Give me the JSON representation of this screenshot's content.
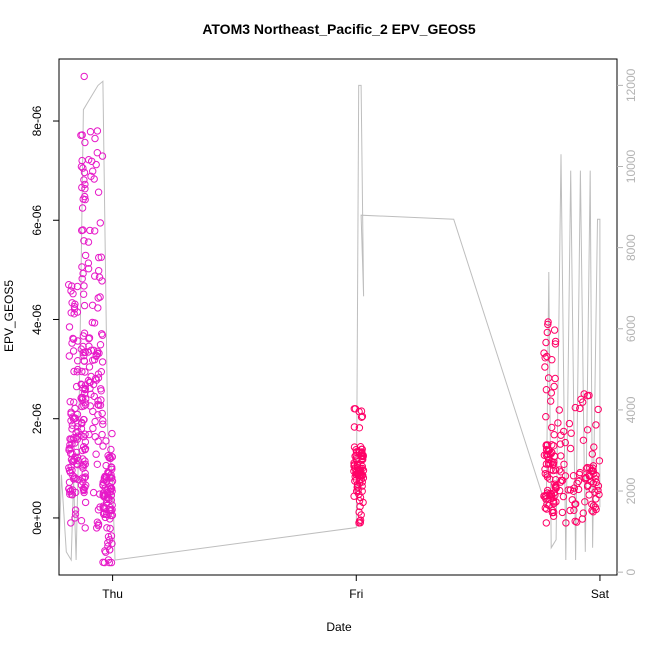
{
  "chart_data": {
    "type": "scatter",
    "title": "ATOM3 Northeast_Pacific_2 EPV_GEOS5",
    "xlabel": "Date",
    "ylabel": "EPV_GEOS5",
    "x_ticks": [
      "Thu",
      "Fri",
      "Sat"
    ],
    "ylim": [
      -1.15e-06,
      9.25e-06
    ],
    "y_ticks": [
      {
        "value": 0,
        "label": "0e+00"
      },
      {
        "value": 2e-06,
        "label": "2e-06"
      },
      {
        "value": 4e-06,
        "label": "4e-06"
      },
      {
        "value": 6e-06,
        "label": "6e-06"
      },
      {
        "value": 8e-06,
        "label": "8e-06"
      }
    ],
    "y2lim": [
      -70,
      12650
    ],
    "y2_ticks": [
      {
        "value": 0,
        "label": "0"
      },
      {
        "value": 2000,
        "label": "2000"
      },
      {
        "value": 4000,
        "label": "4000"
      },
      {
        "value": 6000,
        "label": "6000"
      },
      {
        "value": 8000,
        "label": "8000"
      },
      {
        "value": 10000,
        "label": "10000"
      },
      {
        "value": 12000,
        "label": "12000"
      }
    ],
    "x_units": "days from Thu 00:00",
    "xlim": [
      -0.22,
      2.07
    ],
    "colors": {
      "points_early": "#e619c8",
      "points_late": "#ff0066",
      "altitude_line": "#bebebe",
      "axis": "#000000",
      "axis_right": "#b3b3b3"
    },
    "series": [
      {
        "role": "points",
        "clusters": [
          {
            "x_range": [
              -0.18,
              -0.14
            ],
            "y_min": -1e-07,
            "y_max": 4.7e-06,
            "y_median": 1.3e-06
          },
          {
            "x_range": [
              -0.13,
              -0.11
            ],
            "y_min": -2e-07,
            "y_max": 8.9e-06,
            "y_median": 2e-06
          },
          {
            "x_range": [
              -0.1,
              -0.04
            ],
            "y_min": -2e-07,
            "y_max": 7.8e-06,
            "y_median": 3e-06
          },
          {
            "x_range": [
              -0.04,
              0.0
            ],
            "y_min": -9e-07,
            "y_max": 1.7e-06,
            "y_median": 5e-07
          },
          {
            "x_range": [
              0.99,
              1.03
            ],
            "y_min": -1e-07,
            "y_max": 2.2e-06,
            "y_median": 1e-06
          },
          {
            "x_range": [
              1.77,
              1.82
            ],
            "y_min": -1e-07,
            "y_max": 3.95e-06,
            "y_median": 8e-07
          },
          {
            "x_range": [
              1.82,
              2.0
            ],
            "y_min": -1e-07,
            "y_max": 2.5e-06,
            "y_median": 6e-07
          }
        ]
      },
      {
        "role": "altitude",
        "points": [
          [
            -0.22,
            500
          ],
          [
            -0.21,
            2400
          ],
          [
            -0.19,
            500
          ],
          [
            -0.17,
            300
          ],
          [
            -0.16,
            2300
          ],
          [
            -0.15,
            300
          ],
          [
            -0.14,
            3000
          ],
          [
            -0.12,
            11400
          ],
          [
            -0.1,
            11600
          ],
          [
            -0.08,
            11800
          ],
          [
            -0.06,
            12000
          ],
          [
            -0.04,
            12100
          ],
          [
            -0.02,
            3500
          ],
          [
            0.0,
            2200
          ],
          [
            0.01,
            300
          ],
          [
            1.0,
            1100
          ],
          [
            1.01,
            12000
          ],
          [
            1.02,
            12000
          ],
          [
            1.03,
            6800
          ],
          [
            1.02,
            8800
          ],
          [
            1.4,
            8700
          ],
          [
            1.78,
            1600
          ],
          [
            1.79,
            7400
          ],
          [
            1.8,
            600
          ],
          [
            1.82,
            800
          ],
          [
            1.84,
            10300
          ],
          [
            1.86,
            300
          ],
          [
            1.88,
            9900
          ],
          [
            1.9,
            300
          ],
          [
            1.92,
            9900
          ],
          [
            1.94,
            500
          ],
          [
            1.96,
            9900
          ],
          [
            1.97,
            600
          ],
          [
            1.99,
            8700
          ],
          [
            2.0,
            8700
          ],
          [
            2.0,
            1600
          ]
        ]
      }
    ],
    "grid": false,
    "legend": "none"
  }
}
